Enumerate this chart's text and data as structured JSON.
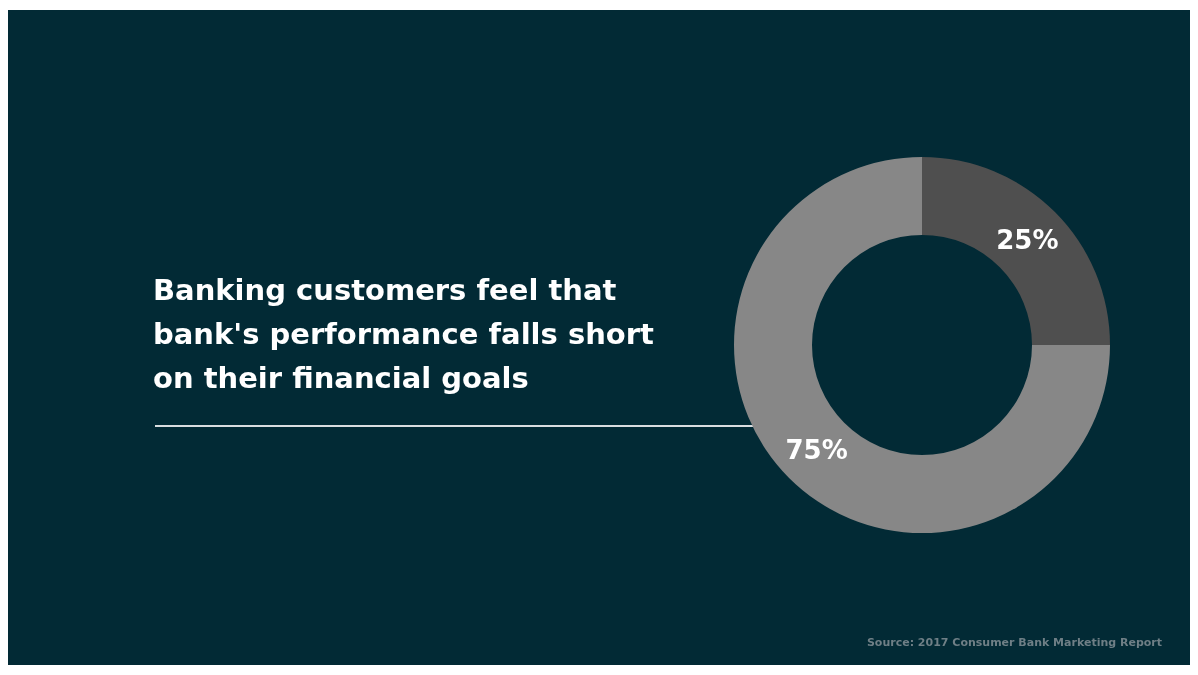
{
  "chart_data": {
    "type": "donut",
    "title": "Banking customers feel that bank's performance falls short on their financial goals",
    "categories": [
      null,
      null
    ],
    "values": [
      25,
      75
    ],
    "colors": [
      "#4f4f4f",
      "#878787"
    ],
    "value_labels": [
      "25%",
      "75%"
    ],
    "legend": false,
    "annotations": [
      "Source: 2017 Consumer Bank Marketing Report"
    ]
  }
}
